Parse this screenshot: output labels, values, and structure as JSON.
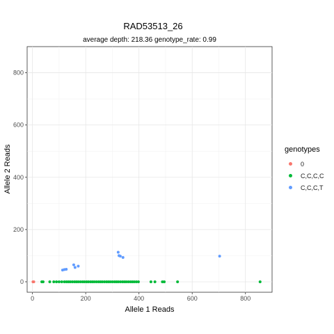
{
  "chart_data": {
    "type": "scatter",
    "title": "RAD53513_26",
    "subtitle": "average depth:  218.36  genotype_rate:  0.99",
    "xlabel": "Allele 1 Reads",
    "ylabel": "Allele 2 Reads",
    "xlim": [
      -20,
      900
    ],
    "ylim": [
      -40,
      900
    ],
    "x_ticks": [
      0,
      200,
      400,
      600,
      800
    ],
    "y_ticks": [
      0,
      200,
      400,
      600,
      800
    ],
    "grid": true,
    "legend_title": "genotypes",
    "legend_position": "right",
    "series": [
      {
        "name": "0",
        "color": "#F8766D",
        "points": [
          [
            2,
            0
          ],
          [
            5,
            0
          ]
        ]
      },
      {
        "name": "C,C,C,C",
        "color": "#00BA38",
        "points": [
          [
            35,
            0
          ],
          [
            40,
            0
          ],
          [
            65,
            0
          ],
          [
            80,
            0
          ],
          [
            90,
            0
          ],
          [
            100,
            0
          ],
          [
            110,
            0
          ],
          [
            120,
            0
          ],
          [
            128,
            0
          ],
          [
            135,
            0
          ],
          [
            142,
            0
          ],
          [
            150,
            0
          ],
          [
            158,
            0
          ],
          [
            165,
            0
          ],
          [
            172,
            0
          ],
          [
            180,
            0
          ],
          [
            188,
            0
          ],
          [
            195,
            0
          ],
          [
            203,
            0
          ],
          [
            210,
            0
          ],
          [
            218,
            0
          ],
          [
            225,
            0
          ],
          [
            232,
            0
          ],
          [
            240,
            0
          ],
          [
            248,
            0
          ],
          [
            255,
            0
          ],
          [
            262,
            0
          ],
          [
            270,
            0
          ],
          [
            278,
            0
          ],
          [
            285,
            0
          ],
          [
            292,
            0
          ],
          [
            300,
            0
          ],
          [
            308,
            0
          ],
          [
            315,
            0
          ],
          [
            322,
            0
          ],
          [
            330,
            0
          ],
          [
            338,
            0
          ],
          [
            345,
            0
          ],
          [
            352,
            0
          ],
          [
            360,
            0
          ],
          [
            368,
            0
          ],
          [
            375,
            0
          ],
          [
            382,
            0
          ],
          [
            390,
            0
          ],
          [
            398,
            0
          ],
          [
            445,
            0
          ],
          [
            460,
            0
          ],
          [
            488,
            0
          ],
          [
            495,
            0
          ],
          [
            545,
            0
          ],
          [
            855,
            0
          ]
        ]
      },
      {
        "name": "C,C,C,T",
        "color": "#619CFF",
        "points": [
          [
            113,
            45
          ],
          [
            120,
            47
          ],
          [
            127,
            48
          ],
          [
            155,
            65
          ],
          [
            160,
            55
          ],
          [
            172,
            60
          ],
          [
            322,
            113
          ],
          [
            325,
            100
          ],
          [
            330,
            98
          ],
          [
            340,
            93
          ],
          [
            703,
            98
          ]
        ]
      }
    ]
  }
}
